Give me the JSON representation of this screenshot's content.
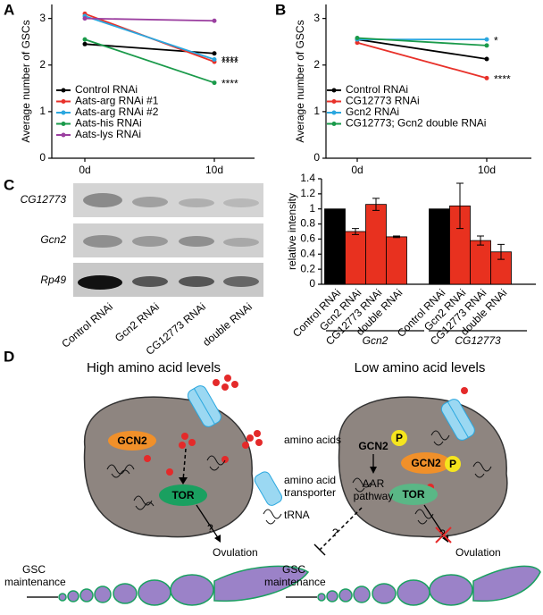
{
  "chart_data": [
    {
      "type": "line",
      "label": "A",
      "y_label": "Average number of GSCs",
      "categories": [
        "0d",
        "10d"
      ],
      "ylim": [
        0,
        3.3
      ],
      "yticks": [
        0,
        1,
        2,
        3
      ],
      "series": [
        {
          "name": "Control RNAi",
          "color": "#000000",
          "values": [
            2.45,
            2.25
          ]
        },
        {
          "name": "Aats-arg RNAi #1",
          "color": "#e8312a",
          "values": [
            3.1,
            2.07
          ],
          "significance": "****"
        },
        {
          "name": "Aats-arg RNAi #2",
          "color": "#2aa7df",
          "values": [
            3.05,
            2.12
          ],
          "significance": "****"
        },
        {
          "name": "Aats-his RNAi",
          "color": "#1a9a4a",
          "values": [
            2.55,
            1.62
          ],
          "significance": "****"
        },
        {
          "name": "Aats-lys RNAi",
          "color": "#9b3fa0",
          "values": [
            3.0,
            2.95
          ]
        }
      ]
    },
    {
      "type": "line",
      "label": "B",
      "y_label": "Average number of GSCs",
      "categories": [
        "0d",
        "10d"
      ],
      "ylim": [
        0,
        3.3
      ],
      "yticks": [
        0,
        1,
        2,
        3
      ],
      "series": [
        {
          "name": "Control RNAi",
          "color": "#000000",
          "values": [
            2.55,
            2.13
          ]
        },
        {
          "name": "CG12773 RNAi",
          "color": "#e8312a",
          "values": [
            2.48,
            1.72
          ],
          "significance": "****"
        },
        {
          "name": "Gcn2 RNAi",
          "color": "#2aa7df",
          "values": [
            2.55,
            2.55
          ],
          "significance": "*"
        },
        {
          "name": "CG12773; Gcn2 double RNAi",
          "color": "#1a9a4a",
          "values": [
            2.58,
            2.42
          ]
        }
      ]
    },
    {
      "type": "bar",
      "y_label": "relative intensity",
      "categories": [
        "Control RNAi",
        "Gcn2 RNAi",
        "CG12773 RNAi",
        "double RNAi",
        "Control RNAi",
        "Gcn2 RNAi",
        "CG12773 RNAi",
        "double RNAi"
      ],
      "values": [
        1,
        0.7,
        1.06,
        0.63,
        1,
        1.04,
        0.58,
        0.43
      ],
      "errors": [
        0,
        0.04,
        0.08,
        0.01,
        0,
        0.3,
        0.06,
        0.1
      ],
      "colors": [
        "#000000",
        "#e8311f",
        "#e8311f",
        "#e8311f",
        "#000000",
        "#e8311f",
        "#e8311f",
        "#e8311f"
      ],
      "groups": [
        "Gcn2",
        "CG12773"
      ],
      "ylim": [
        0,
        1.4
      ],
      "yticks": [
        0,
        0.2,
        0.4,
        0.6,
        0.8,
        1,
        1.2,
        1.4
      ]
    }
  ],
  "gel": {
    "label": "C",
    "rows": [
      "CG12773",
      "Gcn2",
      "Rp49"
    ],
    "lanes": [
      "Control RNAi",
      "Gcn2 RNAi",
      "CG12773 RNAi",
      "double RNAi"
    ]
  },
  "diagram": {
    "label": "D",
    "left": {
      "title": "High amino acid levels",
      "gcn2": "GCN2",
      "tor": "TOR",
      "question": "?",
      "ovulation": "Ovulation",
      "gsc": [
        "GSC",
        "maintenance"
      ]
    },
    "legend": {
      "amino_acids": "amino acids",
      "transporter": [
        "amino acid",
        "transporter"
      ],
      "trna": "tRNA"
    },
    "right": {
      "title": "Low amino acid levels",
      "gcn2": "GCN2",
      "phospho": [
        "P",
        "P"
      ],
      "gcn2_complex": "GCN2",
      "aar": [
        "AAR",
        "pathway"
      ],
      "tor": "TOR",
      "questions": [
        "?",
        "?"
      ],
      "ovulation": "Ovulation",
      "gsc": [
        "GSC",
        "maintenance"
      ]
    }
  }
}
